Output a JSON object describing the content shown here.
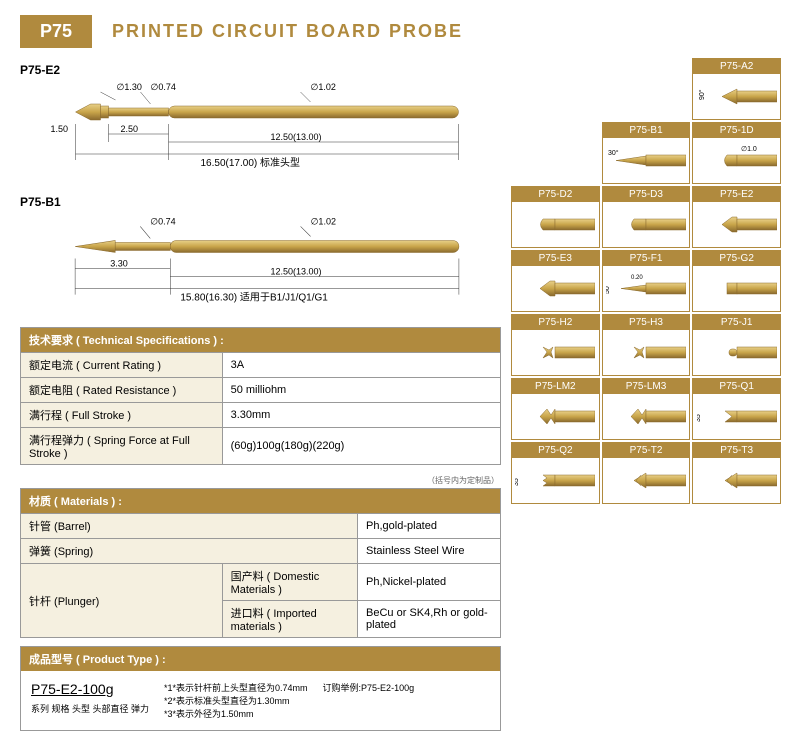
{
  "header": {
    "badge": "P75",
    "title": "PRINTED CIRCUIT BOARD  PROBE"
  },
  "colors": {
    "gold": "#b08a3e",
    "gold_light": "#d4af5e",
    "gold_dark": "#8a6a2e",
    "probe_fill": "#c9a54a",
    "bg_light": "#f5f0e0",
    "border": "#999",
    "text": "#333"
  },
  "diagram1": {
    "label": "P75-E2",
    "d1": "∅1.30",
    "d2": "∅0.74",
    "d3": "∅1.02",
    "h1": "1.50",
    "l1": "2.50",
    "l2": "12.50(13.00)",
    "total": "16.50(17.00) 标准头型"
  },
  "diagram2": {
    "label": "P75-B1",
    "d2": "∅0.74",
    "d3": "∅1.02",
    "l1": "3.30",
    "l2": "12.50(13.00)",
    "total": "15.80(16.30) 适用于B1/J1/Q1/G1"
  },
  "spec": {
    "header": "技术要求 ( Technical Specifications ) :",
    "rows": [
      {
        "label": "额定电流 ( Current Rating )",
        "value": "3A"
      },
      {
        "label": "额定电阻 ( Rated Resistance )",
        "value": "50 milliohm"
      },
      {
        "label": "满行程 ( Full Stroke )",
        "value": "3.30mm"
      },
      {
        "label": "满行程弹力 ( Spring Force at Full Stroke )",
        "value": "(60g)100g(180g)(220g)"
      }
    ],
    "note": "（括号内为定制品）"
  },
  "materials": {
    "header": "材质 ( Materials ) :",
    "rows": [
      {
        "label": "针管 (Barrel)",
        "value": "Ph,gold-plated"
      },
      {
        "label": "弹簧 (Spring)",
        "value": "Stainless Steel Wire"
      }
    ],
    "plunger_label": "针杆 (Plunger)",
    "plunger_rows": [
      {
        "sub": "国产料 ( Domestic Materials )",
        "value": "Ph,Nickel-plated"
      },
      {
        "sub": "进口料 ( Imported materials )",
        "value": "BeCu or SK4,Rh or gold-plated"
      }
    ]
  },
  "product": {
    "header": "成品型号 ( Product Type ) :",
    "code": "P75-E2-100g",
    "legend": "系列 规格 头型 头部直径 弹力",
    "notes": [
      "*1*表示针杆前上头型直径为0.74mm",
      "*2*表示标准头型直径为1.30mm",
      "*3*表示外径为1.50mm"
    ],
    "order": "订购举例:P75-E2-100g"
  },
  "tips": [
    {
      "label": "",
      "shape": "empty"
    },
    {
      "label": "",
      "shape": "empty"
    },
    {
      "label": "P75-A2",
      "shape": "a2",
      "angle": "90°"
    },
    {
      "label": "",
      "shape": "empty"
    },
    {
      "label": "P75-B1",
      "shape": "b1",
      "angle": "30°"
    },
    {
      "label": "P75-1D",
      "shape": "1d",
      "dim": "∅1.0"
    },
    {
      "label": "P75-D2",
      "shape": "d2"
    },
    {
      "label": "P75-D3",
      "shape": "d3"
    },
    {
      "label": "P75-E2",
      "shape": "e2"
    },
    {
      "label": "P75-E3",
      "shape": "e3"
    },
    {
      "label": "P75-F1",
      "shape": "f1",
      "angle": "50°",
      "dim": "0.20"
    },
    {
      "label": "P75-G2",
      "shape": "g2"
    },
    {
      "label": "P75-H2",
      "shape": "h2"
    },
    {
      "label": "P75-H3",
      "shape": "h3"
    },
    {
      "label": "P75-J1",
      "shape": "j1"
    },
    {
      "label": "P75-LM2",
      "shape": "lm2"
    },
    {
      "label": "P75-LM3",
      "shape": "lm3"
    },
    {
      "label": "P75-Q1",
      "shape": "q1",
      "angle": "35°"
    },
    {
      "label": "P75-Q2",
      "shape": "q2",
      "angle": "35°"
    },
    {
      "label": "P75-T2",
      "shape": "t2"
    },
    {
      "label": "P75-T3",
      "shape": "t3"
    }
  ]
}
